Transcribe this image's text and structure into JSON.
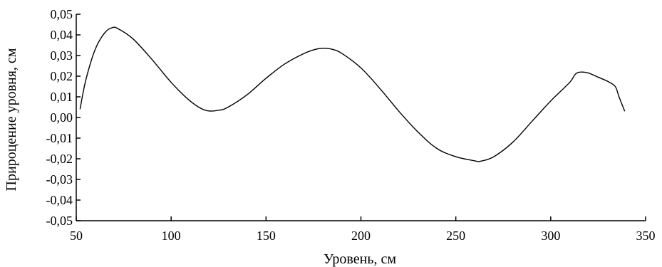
{
  "chart_data": {
    "type": "line",
    "title": "",
    "xlabel": "Уровень, см",
    "ylabel": "Прироцение уровня, см",
    "xlim": [
      50,
      350
    ],
    "ylim": [
      -0.05,
      0.05
    ],
    "grid": false,
    "legend": "none",
    "x_ticks": [
      50,
      100,
      150,
      200,
      250,
      300,
      350
    ],
    "x_tick_labels": [
      "50",
      "100",
      "150",
      "200",
      "250",
      "300",
      "350"
    ],
    "y_ticks": [
      0.05,
      0.04,
      0.03,
      0.02,
      0.01,
      0.0,
      -0.01,
      -0.02,
      -0.03,
      -0.04,
      -0.05
    ],
    "y_tick_labels": [
      "0,05",
      "0,04",
      "0,03",
      "0,02",
      "0,01",
      "0,00",
      "-0,01",
      "-0,02",
      "-0,03",
      "-0,04",
      "-0,05"
    ],
    "series": [
      {
        "color": "#000000",
        "x": [
          52,
          55,
          60,
          65,
          69,
          72,
          80,
          90,
          100,
          110,
          118,
          125,
          130,
          140,
          150,
          160,
          170,
          176,
          180,
          185,
          190,
          200,
          210,
          220,
          230,
          240,
          250,
          260,
          263,
          270,
          280,
          290,
          300,
          310,
          313,
          316,
          320,
          325,
          330,
          334,
          336,
          339
        ],
        "y": [
          0.004,
          0.018,
          0.033,
          0.041,
          0.0435,
          0.043,
          0.038,
          0.028,
          0.017,
          0.008,
          0.0035,
          0.0035,
          0.005,
          0.011,
          0.019,
          0.026,
          0.031,
          0.033,
          0.0335,
          0.033,
          0.031,
          0.024,
          0.014,
          0.003,
          -0.007,
          -0.015,
          -0.019,
          -0.021,
          -0.0212,
          -0.019,
          -0.012,
          -0.002,
          0.008,
          0.017,
          0.021,
          0.022,
          0.0215,
          0.0195,
          0.0175,
          0.015,
          0.01,
          0.003
        ]
      }
    ]
  }
}
